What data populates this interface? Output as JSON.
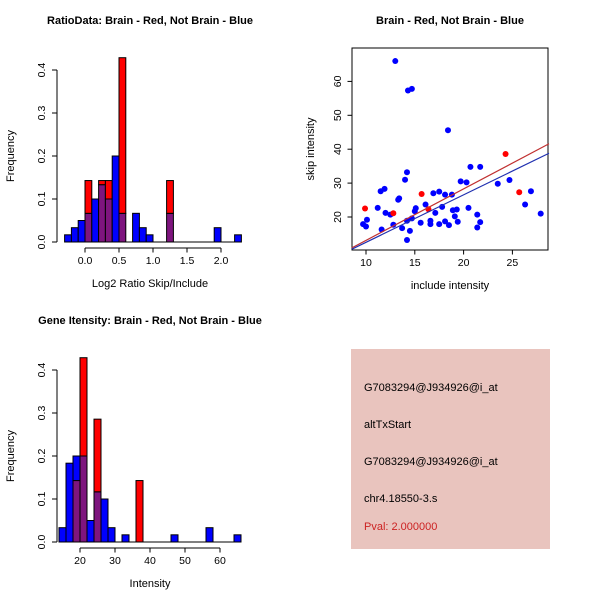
{
  "window": {
    "background": "#FFFFFF"
  },
  "colors": {
    "not_brain_blue": "#0000FF",
    "brain_red": "#FF0000",
    "overlap_purple": "#7E157E",
    "fit_line_red": "#C03030",
    "fit_line_blue": "#2030B0",
    "axis_black": "#000000",
    "info_bg": "#E9C4BE",
    "pval_red": "#CC2222"
  },
  "chart_data": [
    {
      "type": "bar",
      "subtype": "overlaid-histogram",
      "title": "RatioData: Brain - Red, Not Brain - Blue",
      "xlabel": "Log2 Ratio Skip/Include",
      "ylabel": "Frequency",
      "legend_note": "Brain shown red (n=7), Not Brain shown blue (n=60), overlap renders purple",
      "bin_width": 0.1,
      "xlim": [
        -0.35,
        2.35
      ],
      "ylim": [
        0,
        0.43
      ],
      "grid": false,
      "xticks": [
        {
          "v": 0.0,
          "label": "0.0"
        },
        {
          "v": 0.5,
          "label": "0.5"
        },
        {
          "v": 1.0,
          "label": "1.0"
        },
        {
          "v": 1.5,
          "label": "1.5"
        },
        {
          "v": 2.0,
          "label": "2.0"
        }
      ],
      "yticks": [
        {
          "v": 0.0,
          "label": "0.0"
        },
        {
          "v": 0.1,
          "label": "0.1"
        },
        {
          "v": 0.2,
          "label": "0.2"
        },
        {
          "v": 0.3,
          "label": "0.3"
        },
        {
          "v": 0.4,
          "label": "0.4"
        }
      ],
      "series": [
        {
          "name": "Not Brain",
          "color_key": "not_brain_blue"
        },
        {
          "name": "Brain",
          "color_key": "brain_red"
        }
      ],
      "bins": [
        {
          "x": -0.3,
          "blue": 0.0167,
          "red": 0
        },
        {
          "x": -0.2,
          "blue": 0.0333,
          "red": 0
        },
        {
          "x": -0.1,
          "blue": 0.05,
          "red": 0
        },
        {
          "x": 0.0,
          "blue": 0.0667,
          "red": 0.1429
        },
        {
          "x": 0.1,
          "blue": 0.1,
          "red": 0
        },
        {
          "x": 0.2,
          "blue": 0.1333,
          "red": 0.1429
        },
        {
          "x": 0.3,
          "blue": 0.1,
          "red": 0.1429
        },
        {
          "x": 0.4,
          "blue": 0.2,
          "red": 0
        },
        {
          "x": 0.5,
          "blue": 0.0667,
          "red": 0.4286
        },
        {
          "x": 0.7,
          "blue": 0.0667,
          "red": 0
        },
        {
          "x": 0.8,
          "blue": 0.0333,
          "red": 0
        },
        {
          "x": 0.9,
          "blue": 0.0167,
          "red": 0
        },
        {
          "x": 1.2,
          "blue": 0.0667,
          "red": 0.1429
        },
        {
          "x": 1.9,
          "blue": 0.0333,
          "red": 0
        },
        {
          "x": 2.2,
          "blue": 0.0167,
          "red": 0
        }
      ]
    },
    {
      "type": "scatter",
      "title": "Brain - Red, Not Brain - Blue",
      "xlabel": "include intensity",
      "ylabel": "skip intensity",
      "xlim": [
        8.55,
        28.75
      ],
      "ylim": [
        10.2,
        69.8
      ],
      "grid": false,
      "xticks": [
        {
          "v": 10,
          "label": "10"
        },
        {
          "v": 15,
          "label": "15"
        },
        {
          "v": 20,
          "label": "20"
        },
        {
          "v": 25,
          "label": "25"
        }
      ],
      "yticks": [
        {
          "v": 20,
          "label": "20"
        },
        {
          "v": 30,
          "label": "30"
        },
        {
          "v": 40,
          "label": "40"
        },
        {
          "v": 50,
          "label": "50"
        },
        {
          "v": 60,
          "label": "60"
        }
      ],
      "series": [
        {
          "name": "Not Brain",
          "color_key": "not_brain_blue",
          "points": [
            [
              13.0,
              66.0
            ],
            [
              14.3,
              57.3
            ],
            [
              14.7,
              57.8
            ],
            [
              18.4,
              45.6
            ],
            [
              14.2,
              33.2
            ],
            [
              20.7,
              34.8
            ],
            [
              21.7,
              34.8
            ],
            [
              14.0,
              31.0
            ],
            [
              19.7,
              30.5
            ],
            [
              20.3,
              30.2
            ],
            [
              23.5,
              29.8
            ],
            [
              24.7,
              30.9
            ],
            [
              26.9,
              27.6
            ],
            [
              26.3,
              23.7
            ],
            [
              27.9,
              21.0
            ],
            [
              11.5,
              27.6
            ],
            [
              11.9,
              28.3
            ],
            [
              13.3,
              25.1
            ],
            [
              16.9,
              27.0
            ],
            [
              17.5,
              27.5
            ],
            [
              18.1,
              26.6
            ],
            [
              18.8,
              26.6
            ],
            [
              13.4,
              25.5
            ],
            [
              15.1,
              22.6
            ],
            [
              16.1,
              23.7
            ],
            [
              17.8,
              23.0
            ],
            [
              18.9,
              22.0
            ],
            [
              19.3,
              22.2
            ],
            [
              20.5,
              22.7
            ],
            [
              21.4,
              20.7
            ],
            [
              11.2,
              22.7
            ],
            [
              12.0,
              21.2
            ],
            [
              12.5,
              20.7
            ],
            [
              14.2,
              18.9
            ],
            [
              15.0,
              21.7
            ],
            [
              16.6,
              18.9
            ],
            [
              17.1,
              21.2
            ],
            [
              18.1,
              18.7
            ],
            [
              19.1,
              20.2
            ],
            [
              10.1,
              19.2
            ],
            [
              9.7,
              17.9
            ],
            [
              10.0,
              17.2
            ],
            [
              11.6,
              16.3
            ],
            [
              12.8,
              17.7
            ],
            [
              14.7,
              19.6
            ],
            [
              15.6,
              18.3
            ],
            [
              16.6,
              17.9
            ],
            [
              17.5,
              17.9
            ],
            [
              18.5,
              17.6
            ],
            [
              19.4,
              18.6
            ],
            [
              13.7,
              16.7
            ],
            [
              14.5,
              15.9
            ],
            [
              21.4,
              16.9
            ],
            [
              21.7,
              18.5
            ],
            [
              14.2,
              13.2
            ]
          ]
        },
        {
          "name": "Brain",
          "color_key": "brain_red",
          "points": [
            [
              9.9,
              22.5
            ],
            [
              12.8,
              21.1
            ],
            [
              15.7,
              26.8
            ],
            [
              16.4,
              22.3
            ],
            [
              24.3,
              38.6
            ],
            [
              25.7,
              27.3
            ]
          ]
        }
      ],
      "fit_lines": [
        {
          "name": "brain-fit",
          "color_key": "fit_line_red",
          "x1": 8.55,
          "y1": 10.9,
          "x2": 28.75,
          "y2": 41.6
        },
        {
          "name": "not-brain-fit",
          "color_key": "fit_line_blue",
          "x1": 8.55,
          "y1": 10.5,
          "x2": 28.75,
          "y2": 38.8
        }
      ]
    },
    {
      "type": "bar",
      "subtype": "overlaid-histogram",
      "title": "Gene Itensity: Brain - Red, Not Brain - Blue",
      "xlabel": "Intensity",
      "ylabel": "Frequency",
      "legend_note": "Brain shown red (n=7), Not Brain shown blue (n=60), overlap renders purple",
      "bin_width": 2,
      "xlim": [
        13,
        67
      ],
      "ylim": [
        0,
        0.43
      ],
      "grid": false,
      "xticks": [
        {
          "v": 20,
          "label": "20"
        },
        {
          "v": 30,
          "label": "30"
        },
        {
          "v": 40,
          "label": "40"
        },
        {
          "v": 50,
          "label": "50"
        },
        {
          "v": 60,
          "label": "60"
        }
      ],
      "yticks": [
        {
          "v": 0.0,
          "label": "0.0"
        },
        {
          "v": 0.1,
          "label": "0.1"
        },
        {
          "v": 0.2,
          "label": "0.2"
        },
        {
          "v": 0.3,
          "label": "0.3"
        },
        {
          "v": 0.4,
          "label": "0.4"
        }
      ],
      "series": [
        {
          "name": "Not Brain",
          "color_key": "not_brain_blue"
        },
        {
          "name": "Brain",
          "color_key": "brain_red"
        }
      ],
      "bins": [
        {
          "x": 14,
          "blue": 0.0333,
          "red": 0
        },
        {
          "x": 16,
          "blue": 0.1833,
          "red": 0
        },
        {
          "x": 18,
          "blue": 0.2,
          "red": 0.1429
        },
        {
          "x": 20,
          "blue": 0.2,
          "red": 0.4286
        },
        {
          "x": 22,
          "blue": 0.05,
          "red": 0
        },
        {
          "x": 24,
          "blue": 0.1167,
          "red": 0.2857
        },
        {
          "x": 26,
          "blue": 0.1,
          "red": 0
        },
        {
          "x": 28,
          "blue": 0.0333,
          "red": 0
        },
        {
          "x": 32,
          "blue": 0.0167,
          "red": 0
        },
        {
          "x": 36,
          "blue": 0,
          "red": 0.1429
        },
        {
          "x": 46,
          "blue": 0.0167,
          "red": 0
        },
        {
          "x": 56,
          "blue": 0.0333,
          "red": 0
        },
        {
          "x": 64,
          "blue": 0.0167,
          "red": 0
        }
      ]
    }
  ],
  "info_panel": {
    "lines": [
      {
        "text": "G7083294@J934926@i_at",
        "color": "black"
      },
      {
        "text": "altTxStart",
        "color": "black"
      },
      {
        "text": "G7083294@J934926@i_at",
        "color": "black"
      },
      {
        "text": "chr4.18550-3.s",
        "color": "black"
      },
      {
        "text": "Pval: 2.000000",
        "color": "red"
      }
    ]
  }
}
